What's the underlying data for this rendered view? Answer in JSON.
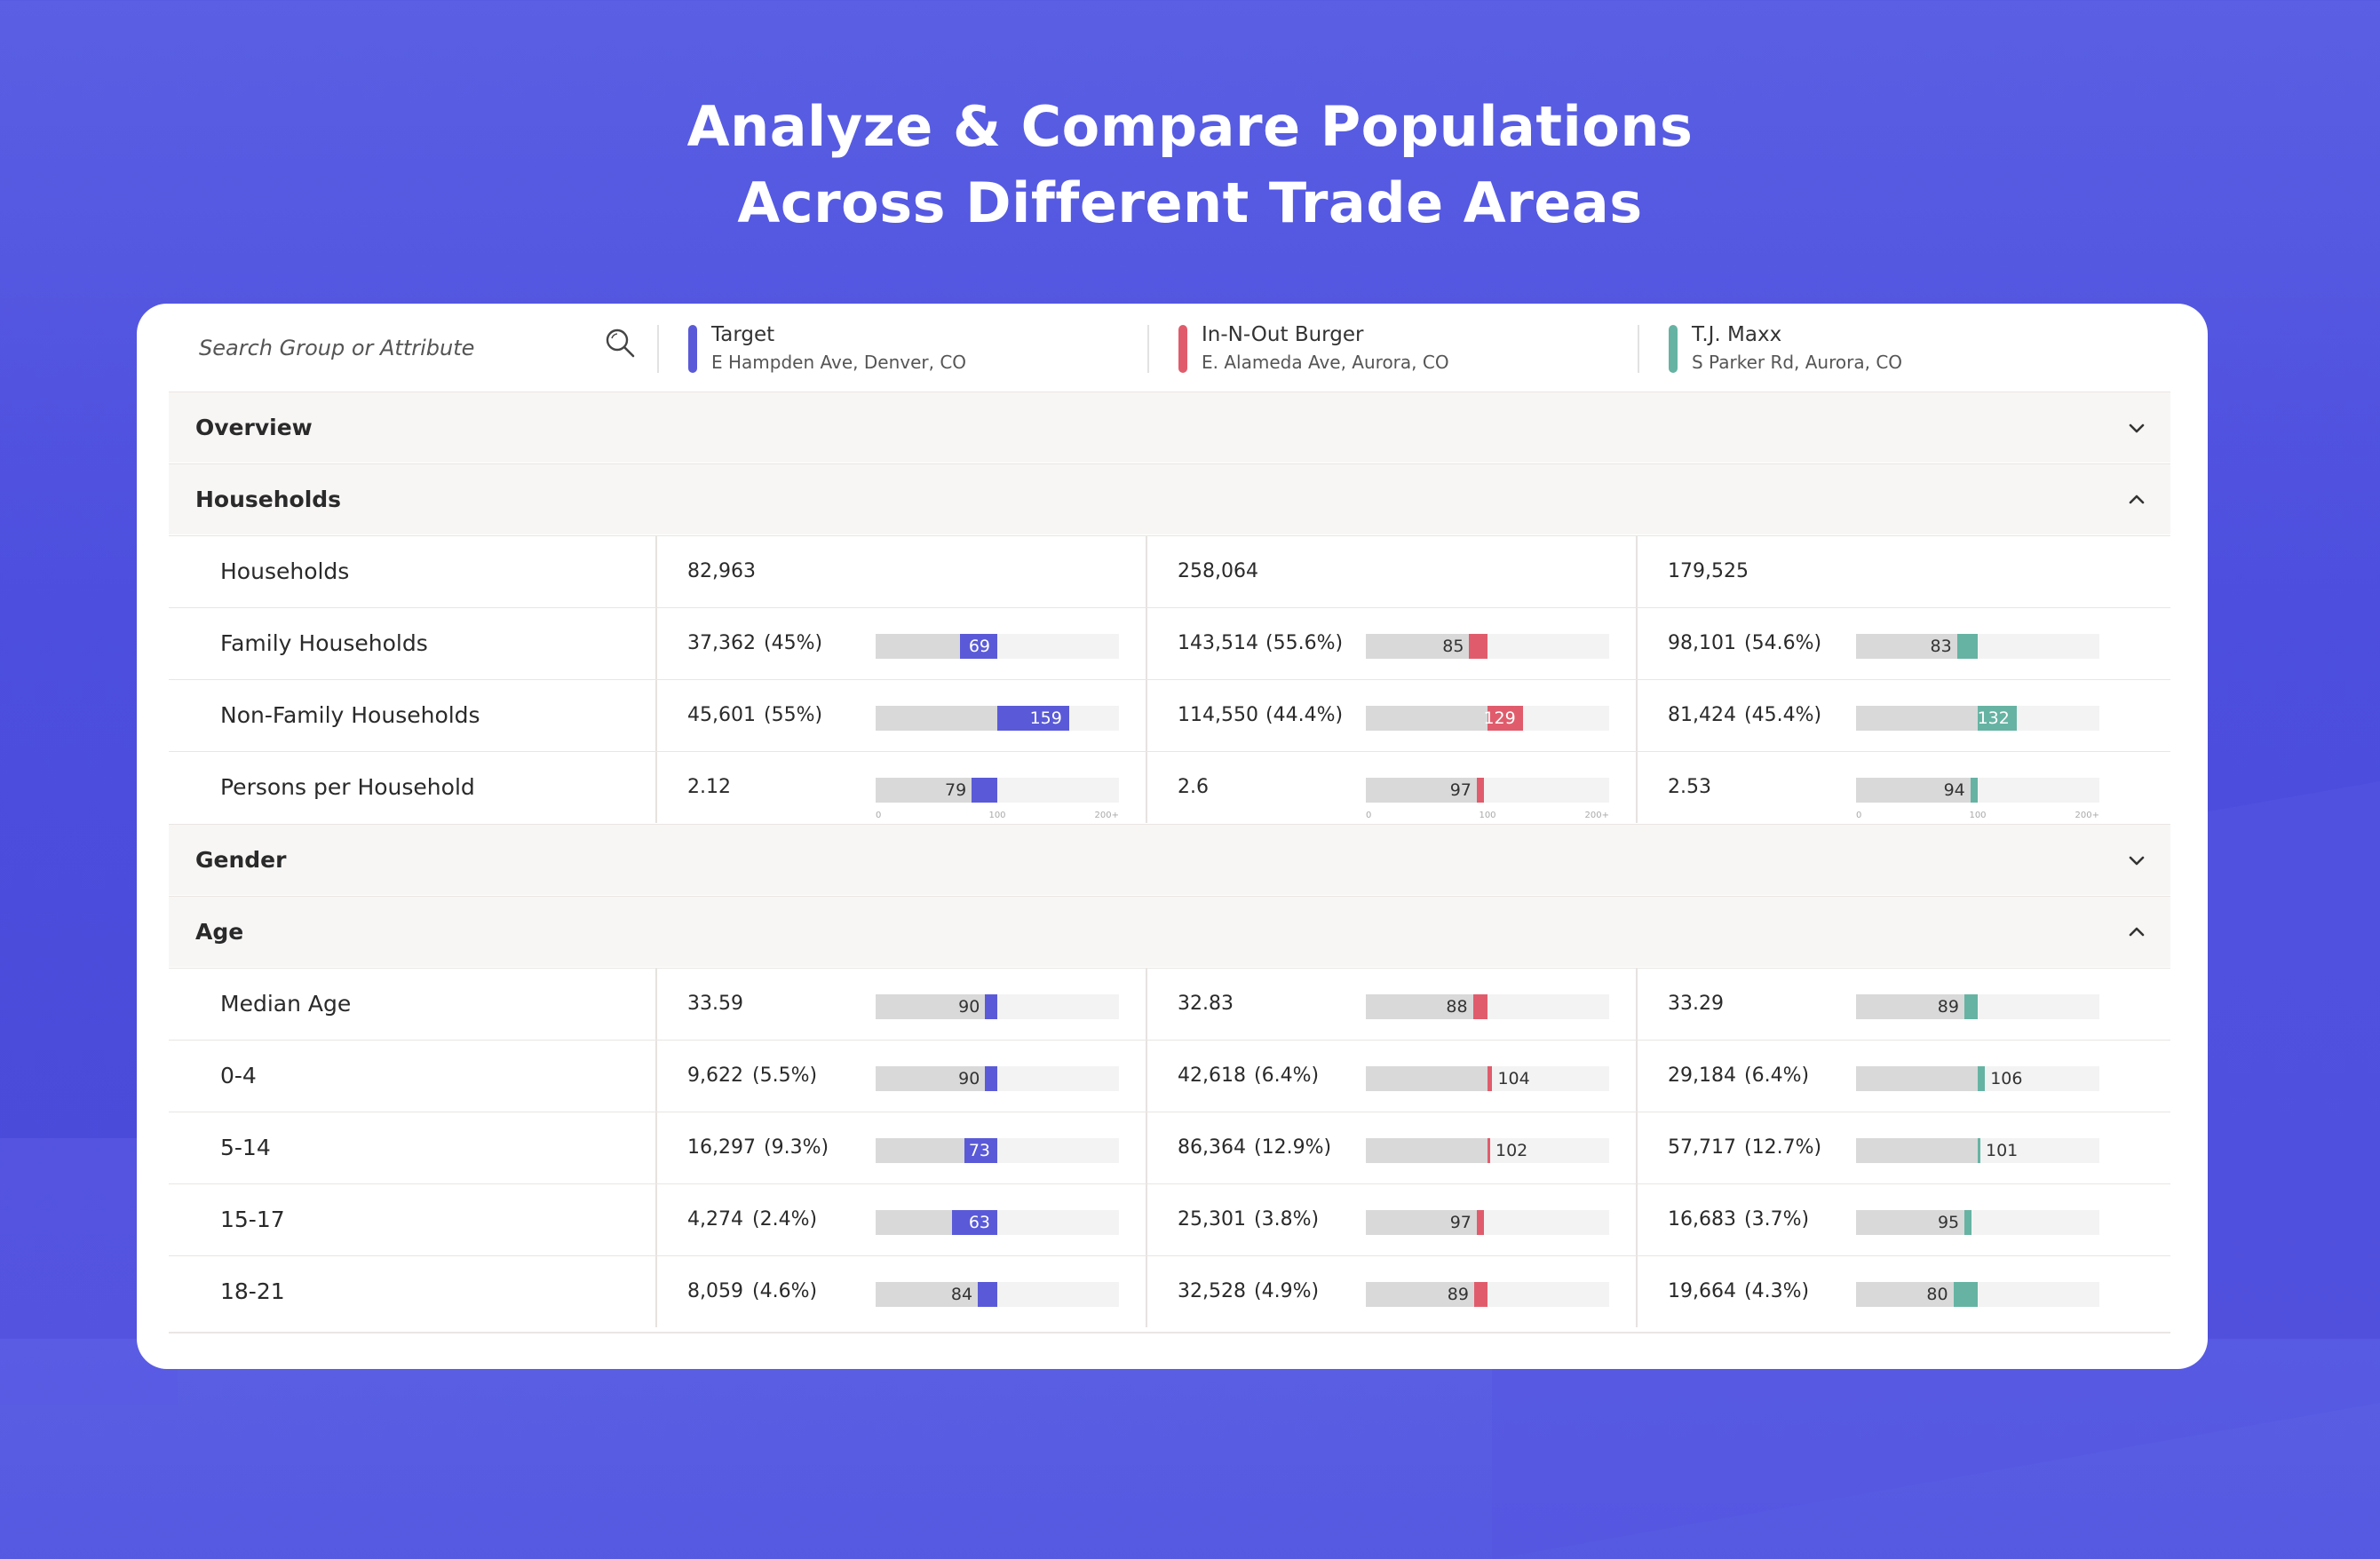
{
  "title": {
    "line1": "Analyze & Compare Populations",
    "line2": "Across Different Trade Areas"
  },
  "search": {
    "placeholder": "Search Group or Attribute",
    "icon": "search-icon"
  },
  "locations": [
    {
      "name": "Target",
      "address": "E Hampden Ave, Denver, CO",
      "color": "#5a5ad8"
    },
    {
      "name": "In-N-Out Burger",
      "address": "E. Alameda Ave, Aurora, CO",
      "color": "#e05c6c"
    },
    {
      "name": "T.J. Maxx",
      "address": "S Parker Rd, Aurora, CO",
      "color": "#66b3a3"
    }
  ],
  "scale_labels": {
    "min": "0",
    "mid": "100",
    "max": "200+"
  },
  "groups": {
    "overview": {
      "label": "Overview",
      "expanded": false
    },
    "households": {
      "label": "Households",
      "expanded": true
    },
    "gender": {
      "label": "Gender",
      "expanded": false
    },
    "age": {
      "label": "Age",
      "expanded": true
    }
  },
  "rows": {
    "households": {
      "label": "Households",
      "cells": [
        {
          "value": "82,963"
        },
        {
          "value": "258,064"
        },
        {
          "value": "179,525"
        }
      ]
    },
    "family_households": {
      "label": "Family Households",
      "cells": [
        {
          "value": "37,362",
          "pct": "(45%)",
          "index": 69,
          "index_label": "69"
        },
        {
          "value": "143,514",
          "pct": "(55.6%)",
          "index": 85,
          "index_label": "85"
        },
        {
          "value": "98,101",
          "pct": "(54.6%)",
          "index": 83,
          "index_label": "83"
        }
      ]
    },
    "non_family_households": {
      "label": "Non-Family Households",
      "cells": [
        {
          "value": "45,601",
          "pct": "(55%)",
          "index": 159,
          "index_label": "159"
        },
        {
          "value": "114,550",
          "pct": "(44.4%)",
          "index": 129,
          "index_label": "129"
        },
        {
          "value": "81,424",
          "pct": "(45.4%)",
          "index": 132,
          "index_label": "132"
        }
      ]
    },
    "persons_per_household": {
      "label": "Persons per Household",
      "cells": [
        {
          "value": "2.12",
          "pct": "",
          "index": 79,
          "index_label": "79"
        },
        {
          "value": "2.6",
          "pct": "",
          "index": 97,
          "index_label": "97"
        },
        {
          "value": "2.53",
          "pct": "",
          "index": 94,
          "index_label": "94"
        }
      ]
    },
    "median_age": {
      "label": "Median Age",
      "cells": [
        {
          "value": "33.59",
          "pct": "",
          "index": 90,
          "index_label": "90"
        },
        {
          "value": "32.83",
          "pct": "",
          "index": 88,
          "index_label": "88"
        },
        {
          "value": "33.29",
          "pct": "",
          "index": 89,
          "index_label": "89"
        }
      ]
    },
    "age_0_4": {
      "label": "0-4",
      "cells": [
        {
          "value": "9,622",
          "pct": "(5.5%)",
          "index": 90,
          "index_label": "90"
        },
        {
          "value": "42,618",
          "pct": "(6.4%)",
          "index": 104,
          "index_label": "104"
        },
        {
          "value": "29,184",
          "pct": "(6.4%)",
          "index": 106,
          "index_label": "106"
        }
      ]
    },
    "age_5_14": {
      "label": "5-14",
      "cells": [
        {
          "value": "16,297",
          "pct": "(9.3%)",
          "index": 73,
          "index_label": "73"
        },
        {
          "value": "86,364",
          "pct": "(12.9%)",
          "index": 102,
          "index_label": "102"
        },
        {
          "value": "57,717",
          "pct": "(12.7%)",
          "index": 101,
          "index_label": "101"
        }
      ]
    },
    "age_15_17": {
      "label": "15-17",
      "cells": [
        {
          "value": "4,274",
          "pct": "(2.4%)",
          "index": 63,
          "index_label": "63"
        },
        {
          "value": "25,301",
          "pct": "(3.8%)",
          "index": 97,
          "index_label": "97"
        },
        {
          "value": "16,683",
          "pct": "(3.7%)",
          "index": 95,
          "index_label": "95"
        }
      ]
    },
    "age_18_21": {
      "label": "18-21",
      "cells": [
        {
          "value": "8,059",
          "pct": "(4.6%)",
          "index": 84,
          "index_label": "84"
        },
        {
          "value": "32,528",
          "pct": "(4.9%)",
          "index": 89,
          "index_label": "89"
        },
        {
          "value": "19,664",
          "pct": "(4.3%)",
          "index": 80,
          "index_label": "80"
        }
      ]
    }
  }
}
